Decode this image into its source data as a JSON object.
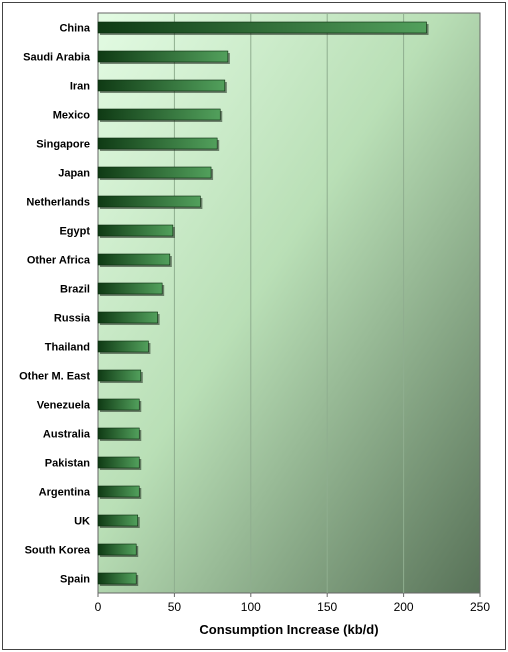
{
  "chart_data": {
    "type": "bar",
    "orientation": "horizontal",
    "title": "",
    "xlabel": "Consumption Increase (kb/d)",
    "ylabel": "",
    "xlim": [
      0,
      250
    ],
    "xticks": [
      0,
      50,
      100,
      150,
      200,
      250
    ],
    "grid": true,
    "legend": "none",
    "categories": [
      "China",
      "Saudi Arabia",
      "Iran",
      "Mexico",
      "Singapore",
      "Japan",
      "Netherlands",
      "Egypt",
      "Other Africa",
      "Brazil",
      "Russia",
      "Thailand",
      "Other M. East",
      "Venezuela",
      "Australia",
      "Pakistan",
      "Argentina",
      "UK",
      "South Korea",
      "Spain"
    ],
    "values": [
      215,
      85,
      83,
      80,
      78,
      74,
      67,
      49,
      47,
      42,
      39,
      33,
      28,
      27,
      27,
      27,
      27,
      26,
      25,
      25
    ],
    "colors": {
      "bar_dark": "#0f3a14",
      "bar_light": "#52a05c",
      "background_light": "#d8f5d8",
      "background_dark": "#5c7a5c",
      "grid": "#8fae8f",
      "frame": "#444444"
    }
  }
}
